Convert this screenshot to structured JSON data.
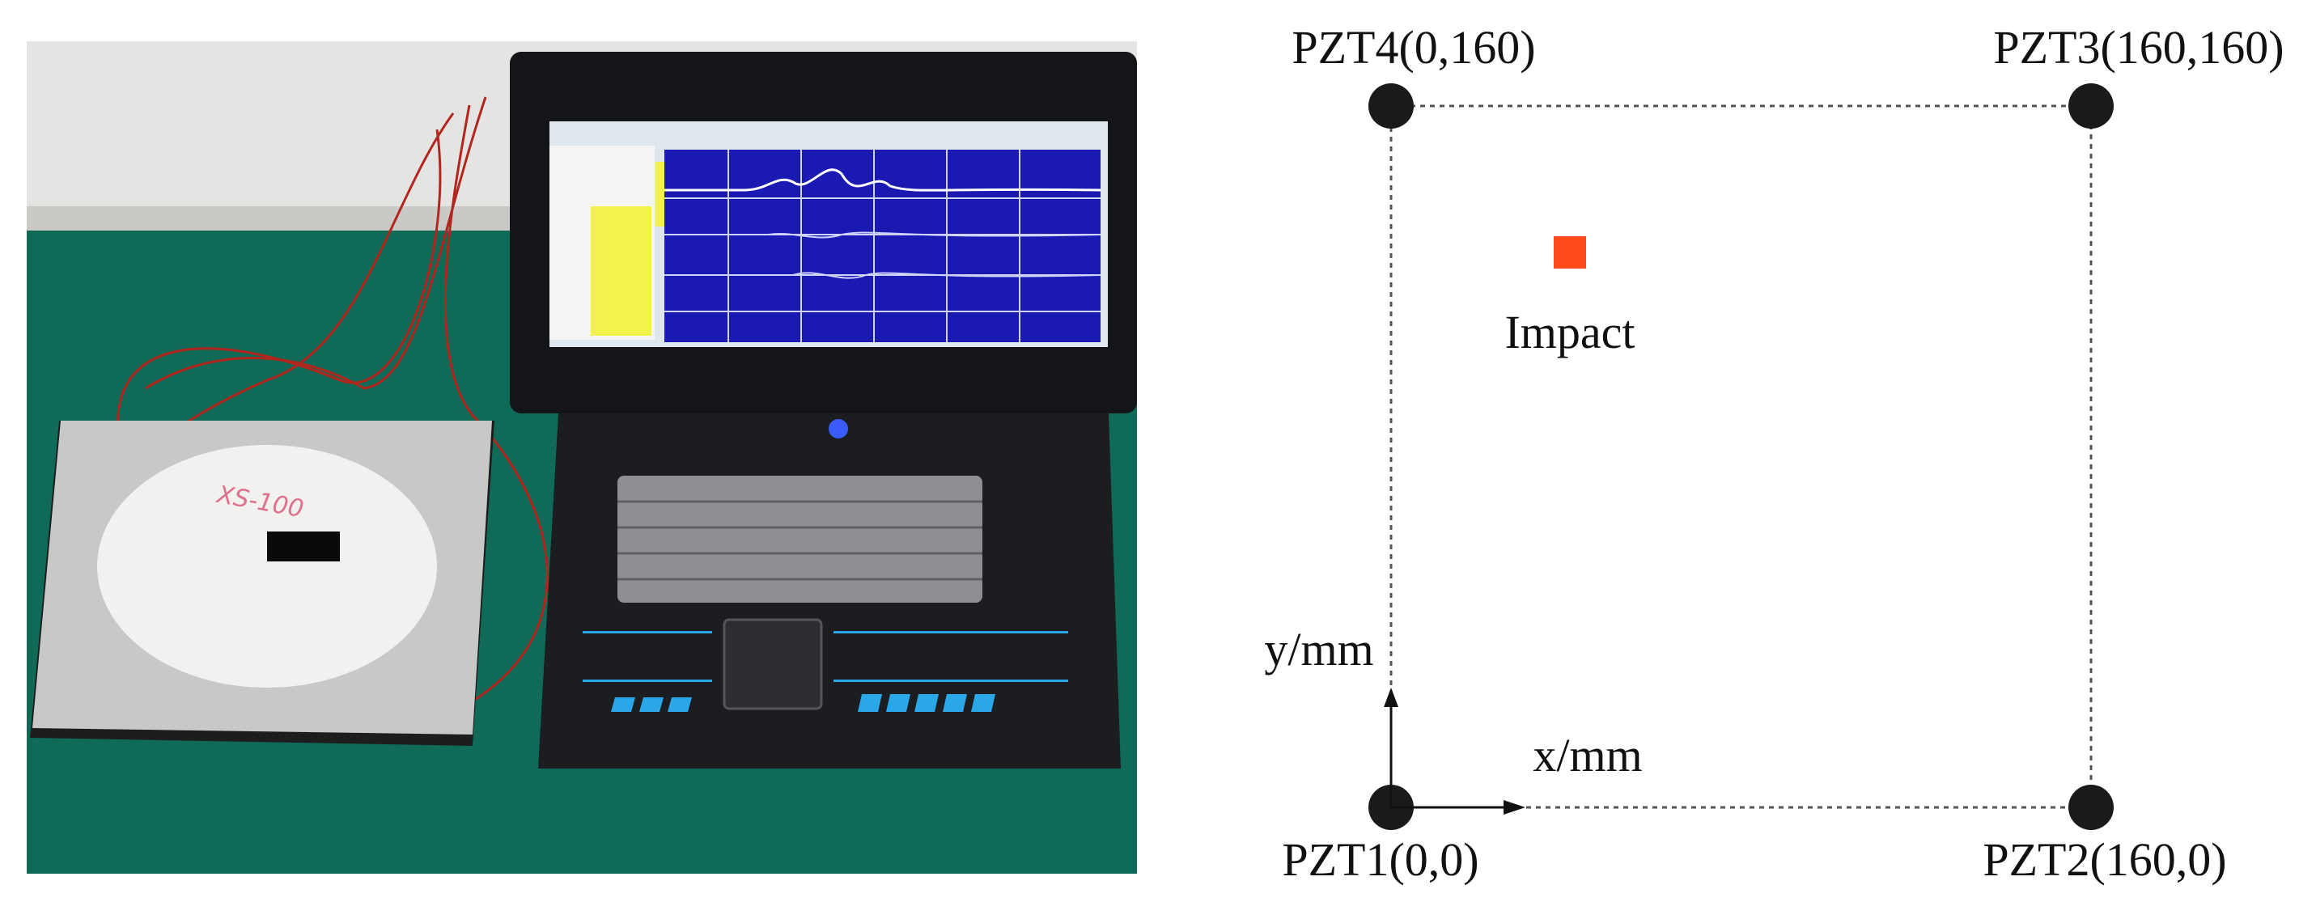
{
  "photo": {
    "plate_label": "XS-100"
  },
  "diagram": {
    "sensors": [
      {
        "label": "PZT4(0,160)"
      },
      {
        "label": "PZT3(160,160)"
      },
      {
        "label": "PZT1(0,0)"
      },
      {
        "label": "PZT2(160,0)"
      }
    ],
    "impact_label": "Impact",
    "y_axis_label": "y/mm",
    "x_axis_label": "x/mm"
  }
}
